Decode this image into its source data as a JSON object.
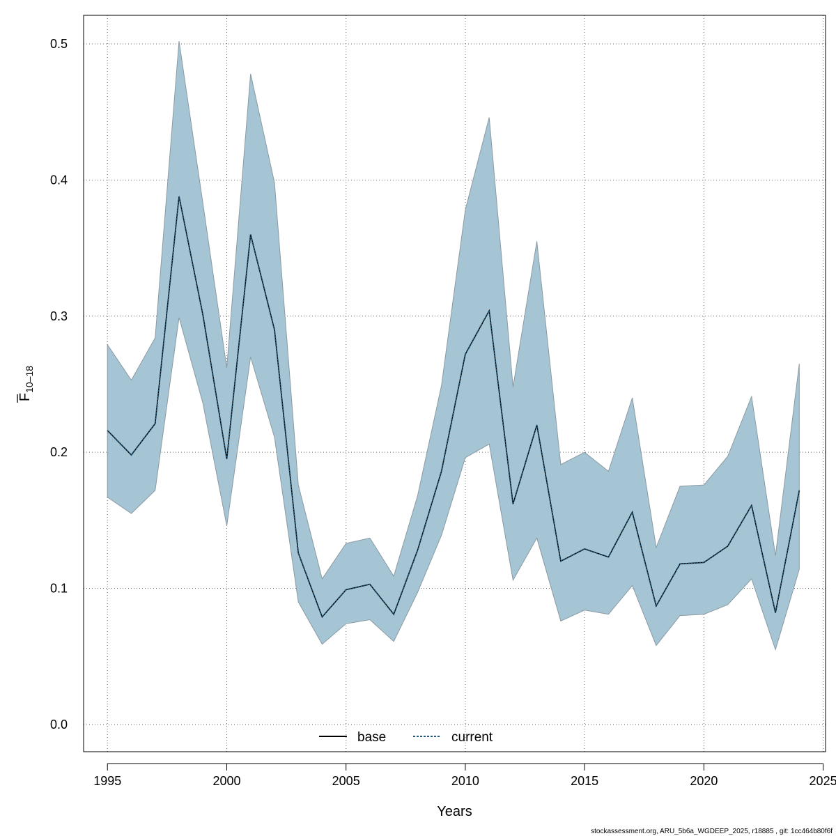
{
  "chart_data": {
    "type": "line",
    "xlabel": "Years",
    "ylabel_main": "F",
    "ylabel_sub": "10–18",
    "xlim": [
      1994,
      2025.1
    ],
    "ylim": [
      -0.02,
      0.521
    ],
    "xticks": [
      1995,
      2000,
      2005,
      2010,
      2015,
      2020,
      2025
    ],
    "yticks": [
      0.0,
      0.1,
      0.2,
      0.3,
      0.4,
      0.5
    ],
    "ytick_labels": [
      "0.0",
      "0.1",
      "0.2",
      "0.3",
      "0.4",
      "0.5"
    ],
    "grid": true,
    "legend_position": "bottom",
    "x": [
      1995,
      1996,
      1997,
      1998,
      1999,
      2000,
      2001,
      2002,
      2003,
      2004,
      2005,
      2006,
      2007,
      2008,
      2009,
      2010,
      2011,
      2012,
      2013,
      2014,
      2015,
      2016,
      2017,
      2018,
      2019,
      2020,
      2021,
      2022,
      2023,
      2024
    ],
    "band": {
      "color": "#a5c4d4",
      "upper": [
        0.279,
        0.253,
        0.284,
        0.502,
        0.383,
        0.262,
        0.478,
        0.398,
        0.176,
        0.107,
        0.133,
        0.137,
        0.109,
        0.168,
        0.249,
        0.378,
        0.446,
        0.248,
        0.355,
        0.191,
        0.2,
        0.186,
        0.24,
        0.13,
        0.175,
        0.176,
        0.197,
        0.241,
        0.124,
        0.265
      ],
      "lower": [
        0.167,
        0.155,
        0.172,
        0.299,
        0.236,
        0.146,
        0.27,
        0.211,
        0.09,
        0.059,
        0.074,
        0.077,
        0.061,
        0.097,
        0.139,
        0.196,
        0.206,
        0.106,
        0.137,
        0.076,
        0.084,
        0.081,
        0.102,
        0.058,
        0.08,
        0.081,
        0.088,
        0.107,
        0.055,
        0.114
      ]
    },
    "series": [
      {
        "name": "base",
        "color": "#000000",
        "style": "solid",
        "values": [
          0.216,
          0.198,
          0.221,
          0.388,
          0.301,
          0.195,
          0.36,
          0.29,
          0.126,
          0.079,
          0.099,
          0.103,
          0.081,
          0.128,
          0.186,
          0.272,
          0.304,
          0.162,
          0.22,
          0.12,
          0.129,
          0.123,
          0.156,
          0.087,
          0.118,
          0.119,
          0.131,
          0.161,
          0.082,
          0.172
        ]
      },
      {
        "name": "current",
        "color": "#1f5a7a",
        "style": "dotted",
        "values": [
          0.216,
          0.198,
          0.221,
          0.388,
          0.301,
          0.195,
          0.36,
          0.29,
          0.126,
          0.079,
          0.099,
          0.103,
          0.081,
          0.128,
          0.186,
          0.272,
          0.304,
          0.162,
          0.22,
          0.12,
          0.129,
          0.123,
          0.156,
          0.087,
          0.118,
          0.119,
          0.131,
          0.161,
          0.082,
          0.172
        ]
      }
    ]
  },
  "footer": "stockassessment.org, ARU_5b6a_WGDEEP_2025, r18885 , git: 1cc464b80f6f"
}
